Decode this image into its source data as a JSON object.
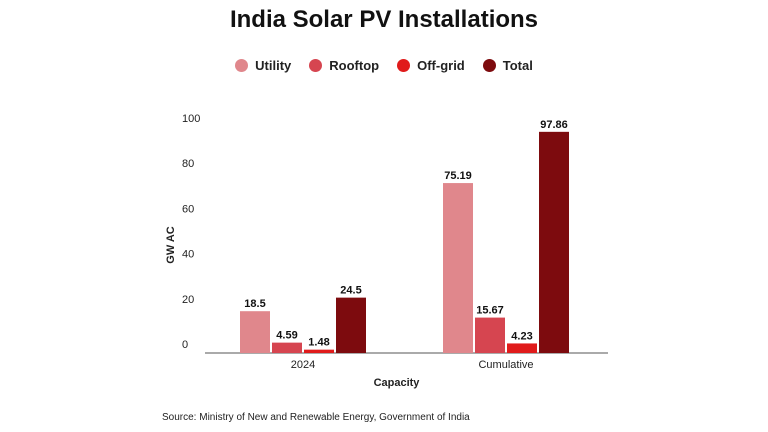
{
  "colors": {
    "utility": "#e0878c",
    "rooftop": "#d64550",
    "offgrid": "#e01b1b",
    "total": "#7d0b0e"
  },
  "chart_data": {
    "type": "bar",
    "title": "India Solar PV Installations",
    "xlabel": "Capacity",
    "ylabel": "GW AC",
    "ylim": [
      0,
      100
    ],
    "yticks": [
      0,
      20,
      40,
      60,
      80,
      100
    ],
    "categories": [
      "2024",
      "Cumulative"
    ],
    "series": [
      {
        "name": "Utility",
        "values": [
          18.5,
          75.19
        ],
        "labels": [
          "18.5",
          "75.19"
        ]
      },
      {
        "name": "Rooftop",
        "values": [
          4.59,
          15.67
        ],
        "labels": [
          "4.59",
          "15.67"
        ]
      },
      {
        "name": "Off-grid",
        "values": [
          1.48,
          4.23
        ],
        "labels": [
          "1.48",
          "4.23"
        ]
      },
      {
        "name": "Total",
        "values": [
          24.5,
          97.86
        ],
        "labels": [
          "24.5",
          "97.86"
        ]
      }
    ],
    "legend_position": "top-center",
    "grid": false,
    "source": "Source: Ministry of New and Renewable Energy, Government of India"
  }
}
